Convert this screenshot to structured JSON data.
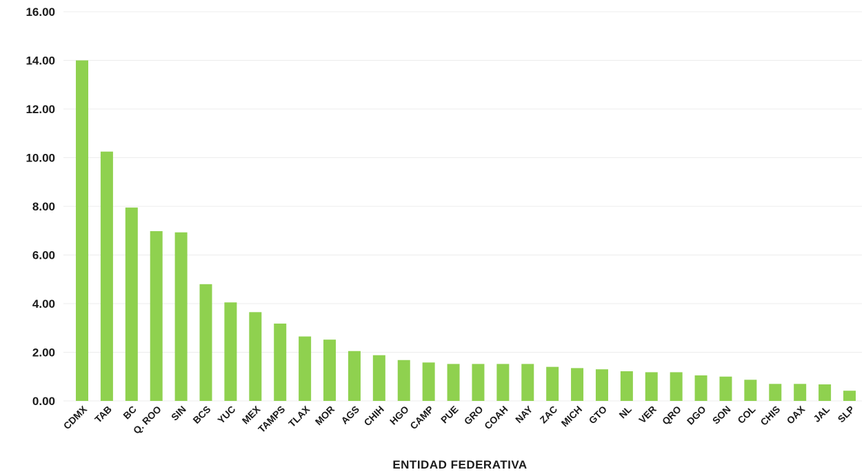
{
  "chart_data": {
    "type": "bar",
    "title": "",
    "xlabel": "ENTIDAD FEDERATIVA",
    "ylabel": "",
    "ylim": [
      0,
      16
    ],
    "yticks": [
      "0.00",
      "2.00",
      "4.00",
      "6.00",
      "8.00",
      "10.00",
      "12.00",
      "14.00",
      "16.00"
    ],
    "grid": true,
    "legend": "none",
    "bar_color": "#8fd14f",
    "categories": [
      "CDMX",
      "TAB",
      "BC",
      "Q. ROO",
      "SIN",
      "BCS",
      "YUC",
      "MEX",
      "TAMPS",
      "TLAX",
      "MOR",
      "AGS",
      "CHIH",
      "HGO",
      "CAMP",
      "PUE",
      "GRO",
      "COAH",
      "NAY",
      "ZAC",
      "MICH",
      "GTO",
      "NL",
      "VER",
      "QRO",
      "DGO",
      "SON",
      "COL",
      "CHIS",
      "OAX",
      "JAL",
      "SLP"
    ],
    "values": [
      14.0,
      10.25,
      7.95,
      6.98,
      6.93,
      4.8,
      4.05,
      3.65,
      3.18,
      2.65,
      2.52,
      2.05,
      1.88,
      1.68,
      1.58,
      1.52,
      1.52,
      1.52,
      1.52,
      1.4,
      1.35,
      1.3,
      1.22,
      1.18,
      1.18,
      1.05,
      1.0,
      0.87,
      0.7,
      0.7,
      0.68,
      0.42
    ]
  }
}
